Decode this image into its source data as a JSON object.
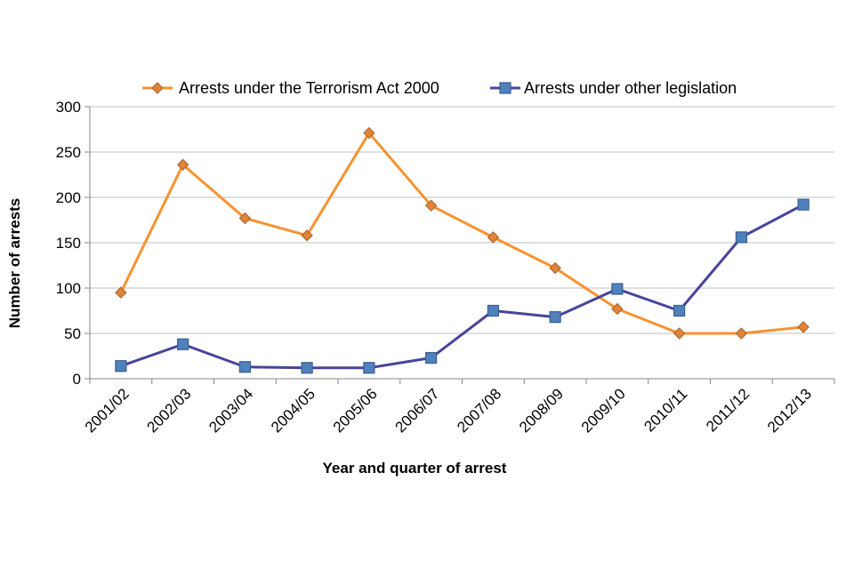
{
  "chart_data": {
    "type": "line",
    "title": "",
    "xlabel": "Year and quarter of arrest",
    "ylabel": "Number of arrests",
    "ylim": [
      0,
      300
    ],
    "yticks": [
      0,
      50,
      100,
      150,
      200,
      250,
      300
    ],
    "grid": true,
    "legend_position": "top",
    "categories": [
      "2001/02",
      "2002/03",
      "2003/04",
      "2004/05",
      "2005/06",
      "2006/07",
      "2007/08",
      "2008/09",
      "2009/10",
      "2010/11",
      "2011/12",
      "2012/13"
    ],
    "series": [
      {
        "name": "Arrests under the Terrorism Act 2000",
        "color": "#f79230",
        "marker_color": "#e1843a",
        "marker": "diamond",
        "values": [
          95,
          236,
          177,
          158,
          271,
          191,
          156,
          122,
          77,
          50,
          50,
          57
        ]
      },
      {
        "name": "Arrests under other legislation",
        "color": "#48449b",
        "marker_color": "#4f81bd",
        "marker": "square",
        "values": [
          14,
          38,
          13,
          12,
          12,
          23,
          75,
          68,
          99,
          75,
          156,
          192
        ]
      }
    ]
  }
}
